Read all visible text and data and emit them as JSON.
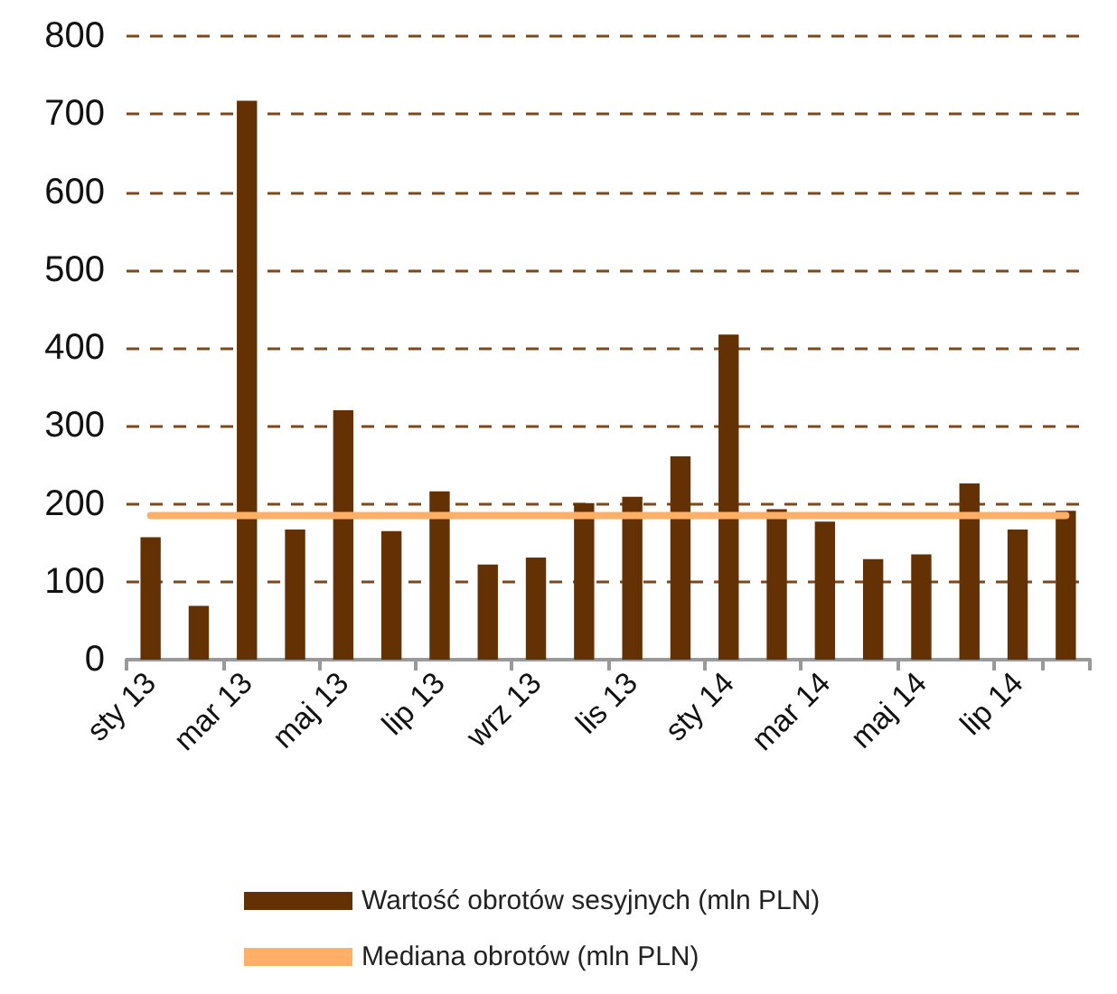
{
  "chart_data": {
    "type": "bar",
    "categories": [
      "sty 13",
      null,
      "mar 13",
      null,
      "maj 13",
      null,
      "lip 13",
      null,
      "wrz 13",
      null,
      "lis 13",
      null,
      "sty 14",
      null,
      "mar 14",
      null,
      "maj 14",
      null,
      "lip 14",
      null
    ],
    "series": [
      {
        "name": "Wartość obrotów sesyjnych (mln PLN)",
        "color": "#633103",
        "values": [
          157,
          69,
          717,
          167,
          320,
          165,
          216,
          122,
          131,
          201,
          209,
          261,
          417,
          193,
          177,
          129,
          135,
          226,
          167,
          191
        ]
      },
      {
        "name": "Mediana obrotów (mln PLN)",
        "type": "line",
        "color": "#ffb066",
        "marker": "none",
        "values": [
          185,
          185,
          185,
          185,
          185,
          185,
          185,
          185,
          185,
          185,
          185,
          185,
          185,
          185,
          185,
          185,
          185,
          185,
          185,
          185
        ]
      }
    ],
    "ylim": [
      0,
      800
    ],
    "yticks": [
      0,
      100,
      200,
      300,
      400,
      500,
      600,
      700,
      800
    ],
    "grid": "y",
    "legend": "bottom"
  }
}
